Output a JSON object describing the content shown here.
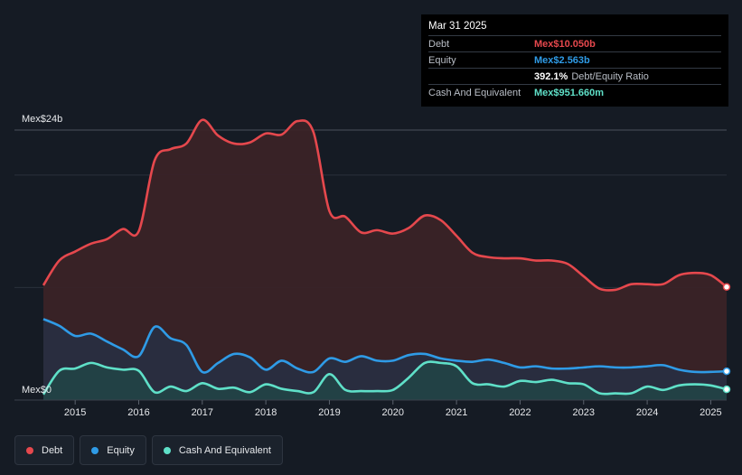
{
  "tooltip": {
    "date": "Mar 31 2025",
    "rows": [
      {
        "label": "Debt",
        "value": "Mex$10.050b",
        "color": "#e5484d"
      },
      {
        "label": "Equity",
        "value": "Mex$2.563b",
        "color": "#2f9be6"
      },
      {
        "label": "",
        "value": "392.1%",
        "extra": "Debt/Equity Ratio",
        "color": "#ffffff"
      },
      {
        "label": "Cash And Equivalent",
        "value": "Mex$951.660m",
        "color": "#5fe0c8"
      }
    ]
  },
  "legend": [
    {
      "label": "Debt",
      "color": "#e5484d"
    },
    {
      "label": "Equity",
      "color": "#2f9be6"
    },
    {
      "label": "Cash And Equivalent",
      "color": "#5fe0c8"
    }
  ],
  "chart_data": {
    "type": "area",
    "y_top_label": "Mex$24b",
    "y_bottom_label": "Mex$0",
    "ylim": [
      0,
      24
    ],
    "xlim": [
      2014.5,
      2025.25
    ],
    "x_ticks": [
      "2015",
      "2016",
      "2017",
      "2018",
      "2019",
      "2020",
      "2021",
      "2022",
      "2023",
      "2024",
      "2025"
    ],
    "grid": true,
    "series": [
      {
        "name": "Debt",
        "color": "#e5484d",
        "x": [
          2014.5,
          2014.75,
          2015.0,
          2015.25,
          2015.5,
          2015.75,
          2016.0,
          2016.25,
          2016.5,
          2016.75,
          2017.0,
          2017.25,
          2017.5,
          2017.75,
          2018.0,
          2018.25,
          2018.5,
          2018.75,
          2019.0,
          2019.25,
          2019.5,
          2019.75,
          2020.0,
          2020.25,
          2020.5,
          2020.75,
          2021.0,
          2021.25,
          2021.5,
          2021.75,
          2022.0,
          2022.25,
          2022.5,
          2022.75,
          2023.0,
          2023.25,
          2023.5,
          2023.75,
          2024.0,
          2024.25,
          2024.5,
          2024.75,
          2025.0,
          2025.25
        ],
        "values": [
          10.2,
          12.4,
          13.2,
          13.9,
          14.3,
          15.2,
          15.0,
          21.3,
          22.3,
          22.8,
          24.9,
          23.5,
          22.8,
          22.9,
          23.7,
          23.6,
          24.8,
          23.8,
          16.8,
          16.3,
          14.9,
          15.1,
          14.8,
          15.3,
          16.4,
          16.0,
          14.6,
          13.1,
          12.7,
          12.6,
          12.6,
          12.4,
          12.4,
          12.1,
          11.0,
          9.9,
          9.8,
          10.3,
          10.3,
          10.3,
          11.1,
          11.3,
          11.1,
          10.05
        ]
      },
      {
        "name": "Equity",
        "color": "#2f9be6",
        "x": [
          2014.5,
          2014.75,
          2015.0,
          2015.25,
          2015.5,
          2015.75,
          2016.0,
          2016.25,
          2016.5,
          2016.75,
          2017.0,
          2017.25,
          2017.5,
          2017.75,
          2018.0,
          2018.25,
          2018.5,
          2018.75,
          2019.0,
          2019.25,
          2019.5,
          2019.75,
          2020.0,
          2020.25,
          2020.5,
          2020.75,
          2021.0,
          2021.25,
          2021.5,
          2021.75,
          2022.0,
          2022.25,
          2022.5,
          2022.75,
          2023.0,
          2023.25,
          2023.5,
          2023.75,
          2024.0,
          2024.25,
          2024.5,
          2024.75,
          2025.0,
          2025.25
        ],
        "values": [
          7.2,
          6.6,
          5.7,
          5.9,
          5.2,
          4.5,
          3.9,
          6.5,
          5.5,
          4.9,
          2.5,
          3.3,
          4.1,
          3.8,
          2.7,
          3.5,
          2.8,
          2.5,
          3.7,
          3.4,
          3.9,
          3.5,
          3.5,
          4.0,
          4.1,
          3.7,
          3.5,
          3.4,
          3.6,
          3.3,
          2.9,
          3.0,
          2.8,
          2.8,
          2.9,
          3.0,
          2.9,
          2.9,
          3.0,
          3.1,
          2.7,
          2.5,
          2.5,
          2.563
        ]
      },
      {
        "name": "Cash And Equivalent",
        "color": "#5fe0c8",
        "x": [
          2014.5,
          2014.75,
          2015.0,
          2015.25,
          2015.5,
          2015.75,
          2016.0,
          2016.25,
          2016.5,
          2016.75,
          2017.0,
          2017.25,
          2017.5,
          2017.75,
          2018.0,
          2018.25,
          2018.5,
          2018.75,
          2019.0,
          2019.25,
          2019.5,
          2019.75,
          2020.0,
          2020.25,
          2020.5,
          2020.75,
          2021.0,
          2021.25,
          2021.5,
          2021.75,
          2022.0,
          2022.25,
          2022.5,
          2022.75,
          2023.0,
          2023.25,
          2023.5,
          2023.75,
          2024.0,
          2024.25,
          2024.5,
          2024.75,
          2025.0,
          2025.25
        ],
        "values": [
          0.5,
          2.6,
          2.8,
          3.3,
          2.9,
          2.7,
          2.6,
          0.7,
          1.2,
          0.8,
          1.5,
          1.0,
          1.1,
          0.7,
          1.4,
          1.0,
          0.8,
          0.7,
          2.3,
          0.9,
          0.8,
          0.8,
          0.9,
          2.0,
          3.3,
          3.3,
          3.0,
          1.5,
          1.4,
          1.2,
          1.7,
          1.6,
          1.8,
          1.5,
          1.4,
          0.6,
          0.6,
          0.6,
          1.2,
          0.9,
          1.3,
          1.4,
          1.3,
          0.95
        ]
      }
    ]
  }
}
